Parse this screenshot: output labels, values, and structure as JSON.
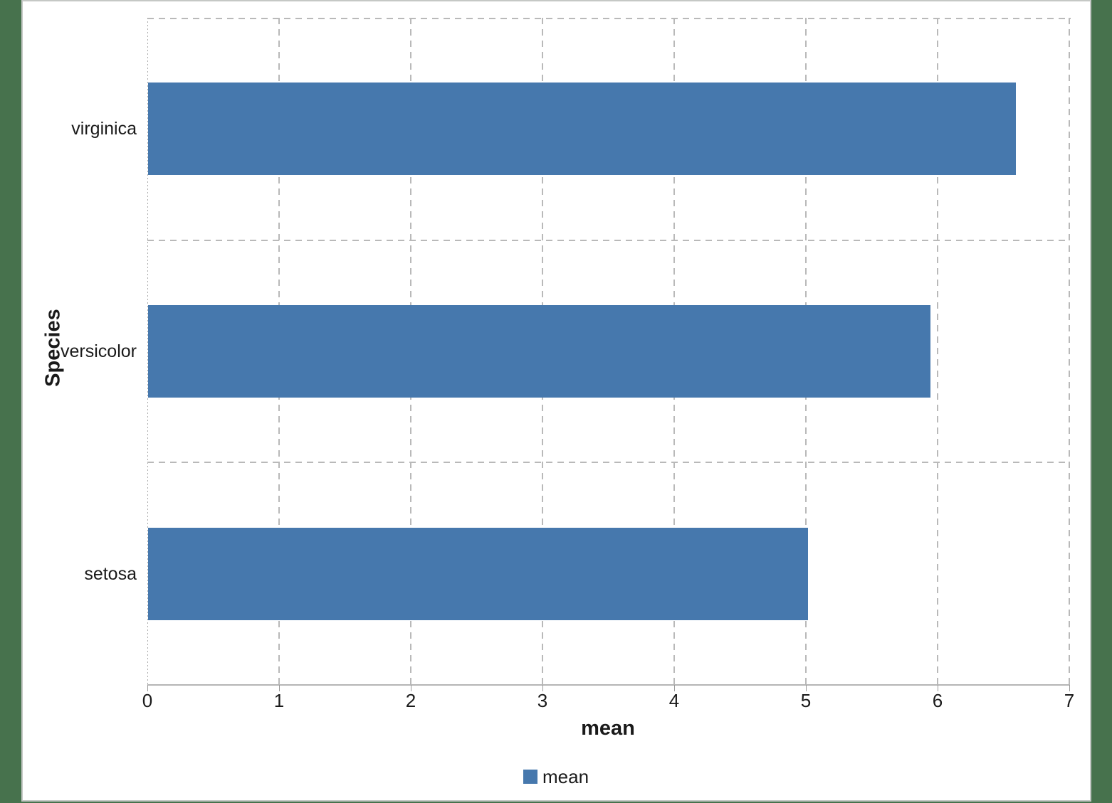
{
  "chart_data": {
    "type": "bar",
    "orientation": "horizontal",
    "title": "",
    "xlabel": "mean",
    "ylabel": "Species",
    "categories_top_to_bottom": [
      "virginica",
      "versicolor",
      "setosa"
    ],
    "series": [
      {
        "name": "mean",
        "values": [
          6.59,
          5.94,
          5.01
        ]
      }
    ],
    "xlim": [
      0,
      7
    ],
    "xticks": [
      0,
      1,
      2,
      3,
      4,
      5,
      6,
      7
    ],
    "grid": true,
    "legend": {
      "position": "bottom",
      "entries": [
        "mean"
      ]
    }
  },
  "colors": {
    "background": "#47724d",
    "page": "#ffffff",
    "page_border": "#c5c8c5",
    "bar": "#4678ad",
    "gridline": "#b9b9b9",
    "axis_line": "#b5b5b5",
    "tick": "#9a9a9a",
    "text": "#1a1a1a"
  }
}
